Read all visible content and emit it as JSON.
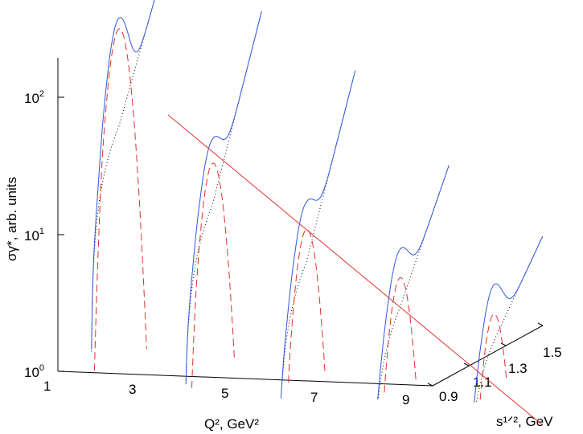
{
  "chart_data": {
    "type": "line",
    "subtype": "3d-waterfall",
    "title": "",
    "xlabel": "Q², GeV²",
    "ylabel": "s¹ᐟ², GeV",
    "zlabel": "σγ*, arb. units",
    "z_scale": "log",
    "zlim": [
      1,
      250
    ],
    "xlim": [
      1,
      9
    ],
    "ylim": [
      0.9,
      1.5
    ],
    "x_ticks": [
      "1",
      "3",
      "5",
      "7",
      "9"
    ],
    "y_ticks": [
      "0.9",
      "1.1",
      "1.3",
      "1.5"
    ],
    "z_ticks": [
      {
        "value": 1,
        "mantissa": "10",
        "exponent": "0"
      },
      {
        "value": 10,
        "mantissa": "10",
        "exponent": "1"
      },
      {
        "value": 100,
        "mantissa": "10",
        "exponent": "2"
      }
    ],
    "grid": false,
    "legend": "none",
    "slices": [
      {
        "Q2": 1,
        "peak_total": 215,
        "peak_resonance": 180,
        "valley_total": 82,
        "end_total": 420
      },
      {
        "Q2": 3,
        "peak_total": 30,
        "peak_resonance": 20,
        "valley_total": 19,
        "end_total": 165
      },
      {
        "Q2": 5,
        "peak_total": 11,
        "peak_resonance": 7,
        "valley_total": 7.8,
        "end_total": 65
      },
      {
        "Q2": 7,
        "peak_total": 5.3,
        "peak_resonance": 3.3,
        "valley_total": 3.8,
        "end_total": 14
      },
      {
        "Q2": 9,
        "peak_total": 3.1,
        "peak_resonance": 1.9,
        "valley_total": 2.4,
        "end_total": 4.5
      }
    ],
    "colors": {
      "total": "#3355dd",
      "resonance": "#e03030",
      "peak_envelope": "#e03030",
      "background": "#000000"
    }
  }
}
